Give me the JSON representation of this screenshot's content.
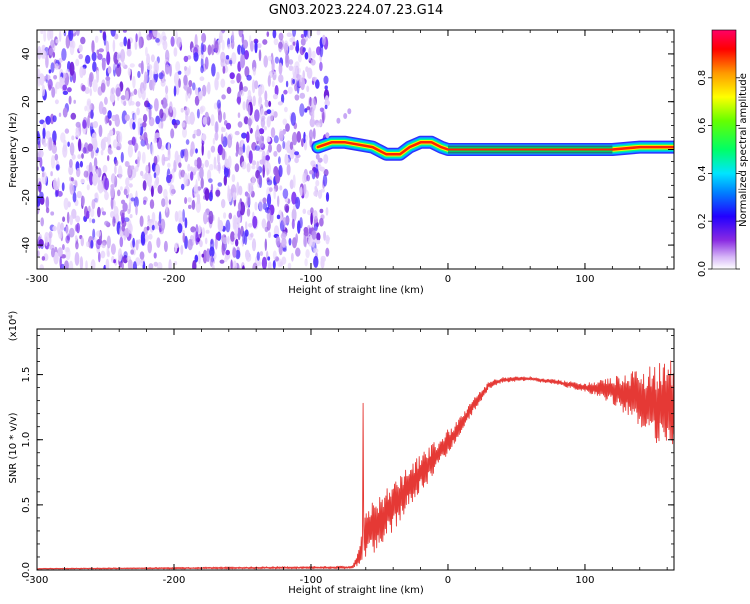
{
  "figure": {
    "title": "GN03.2023.224.07.23.G14"
  },
  "chart_data": [
    {
      "type": "heatmap",
      "xlabel": "Height of straight line (km)",
      "ylabel": "Frequency (Hz)",
      "xlim": [
        -300,
        165
      ],
      "ylim": [
        -50,
        50
      ],
      "xticks": [
        -300,
        -200,
        -100,
        0,
        100
      ],
      "yticks": [
        -40,
        -20,
        0,
        20,
        40
      ],
      "noise_region_x": [
        -300,
        -92
      ],
      "ridge": {
        "x": [
          -95,
          -85,
          -75,
          -65,
          -55,
          -45,
          -40,
          -35,
          -28,
          -20,
          -12,
          -5,
          0,
          50,
          100,
          120,
          140,
          165
        ],
        "frequency": [
          1,
          3,
          3,
          2,
          1,
          -2,
          -2,
          -2,
          1,
          3,
          3,
          1,
          0,
          0,
          0,
          0,
          1,
          1
        ]
      },
      "colorbar": {
        "label": "Normalized spectral amplitude",
        "range": [
          0,
          1
        ],
        "ticks": [
          0.0,
          0.2,
          0.4,
          0.6,
          0.8
        ]
      }
    },
    {
      "type": "line",
      "xlabel": "Height of straight line (km)",
      "ylabel": "SNR (10 * v/v)",
      "scale_note": "(x10⁴)",
      "xlim": [
        -300,
        165
      ],
      "ylim": [
        0,
        1.85
      ],
      "xticks": [
        -300,
        -200,
        -100,
        0,
        100
      ],
      "yticks": [
        0.0,
        0.5,
        1.0,
        1.5
      ],
      "series": [
        {
          "color": "#e53935",
          "envelope": {
            "x": [
              -300,
              -70,
              -66,
              -60,
              -50,
              -40,
              -30,
              -20,
              -10,
              0,
              10,
              20,
              30,
              40,
              60,
              80,
              100,
              120,
              140,
              155,
              165
            ],
            "mean": [
              0.01,
              0.02,
              0.08,
              0.28,
              0.38,
              0.48,
              0.62,
              0.74,
              0.86,
              0.98,
              1.12,
              1.28,
              1.42,
              1.46,
              1.47,
              1.44,
              1.4,
              1.38,
              1.32,
              1.28,
              1.25
            ],
            "spread": [
              0.003,
              0.01,
              0.05,
              0.22,
              0.2,
              0.18,
              0.16,
              0.15,
              0.12,
              0.1,
              0.07,
              0.05,
              0.03,
              0.02,
              0.015,
              0.02,
              0.03,
              0.1,
              0.22,
              0.33,
              0.38
            ]
          },
          "spike": {
            "x": -62,
            "value": 1.28
          }
        }
      ]
    }
  ]
}
